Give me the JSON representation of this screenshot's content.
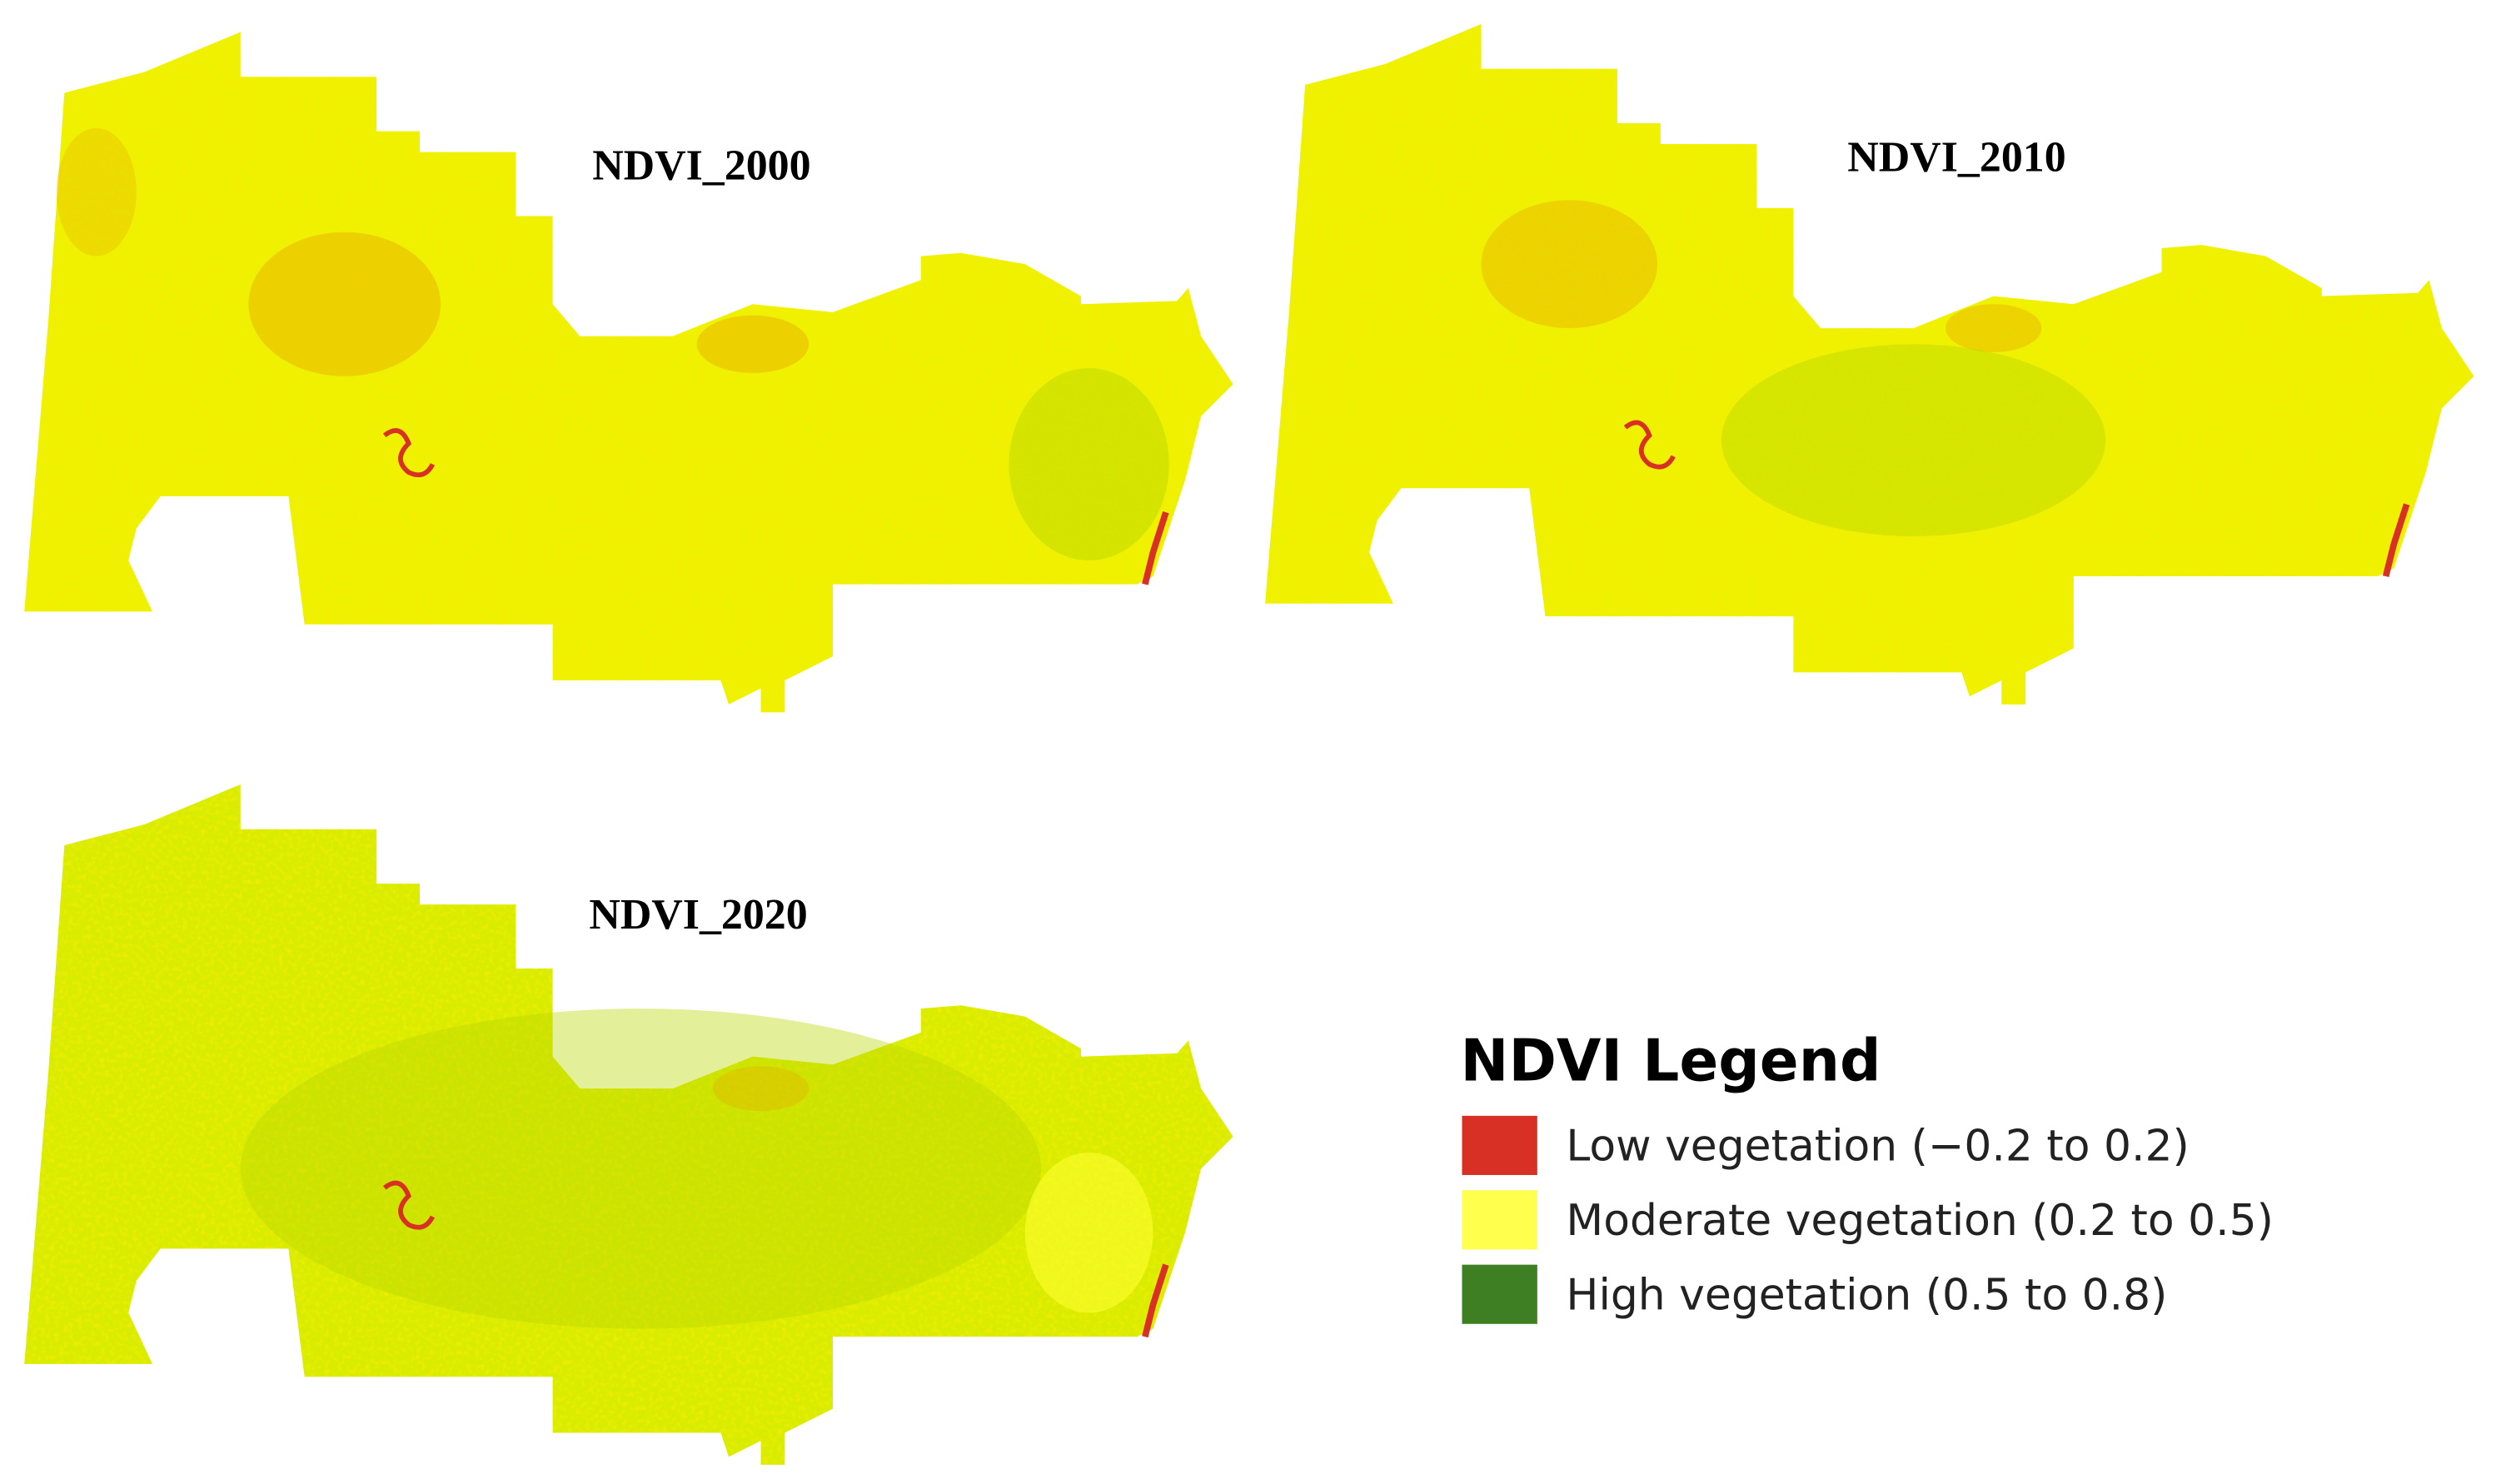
{
  "maps": [
    {
      "title": "NDVI_2000"
    },
    {
      "title": "NDVI_2010"
    },
    {
      "title": "NDVI_2020"
    }
  ],
  "legend": {
    "title": "NDVI Legend",
    "items": [
      {
        "label": "Low vegetation (−0.2 to 0.2)",
        "color": "#d93025"
      },
      {
        "label": "Moderate vegetation (0.2 to 0.5)",
        "color": "#ffff4d"
      },
      {
        "label": "High vegetation (0.5 to 0.8)",
        "color": "#3f7f24"
      }
    ]
  }
}
